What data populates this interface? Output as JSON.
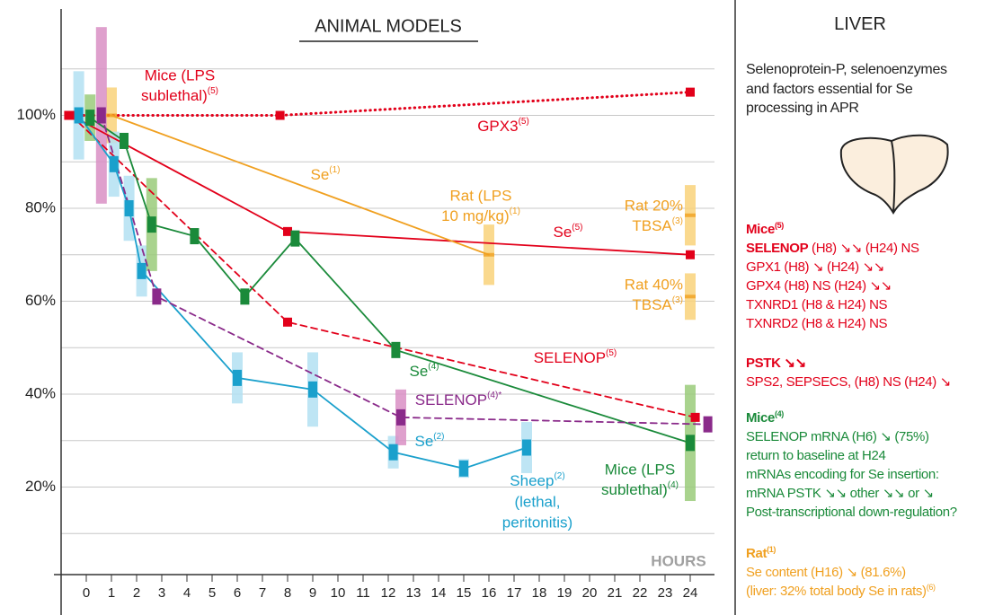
{
  "chart_data": {
    "type": "line",
    "title": "ANIMAL MODELS",
    "ylim": [
      0,
      120
    ],
    "xlim": [
      -1,
      25
    ],
    "yticks": [
      {
        "value": 20,
        "label": "20%"
      },
      {
        "value": 40,
        "label": "40%"
      },
      {
        "value": 60,
        "label": "60%"
      },
      {
        "value": 80,
        "label": "80%"
      },
      {
        "value": 100,
        "label": "100%"
      }
    ],
    "ygrid": [
      10,
      20,
      30,
      40,
      50,
      60,
      70,
      80,
      90,
      100,
      110
    ],
    "xticks": [
      0,
      1,
      2,
      3,
      4,
      5,
      6,
      7,
      8,
      9,
      10,
      11,
      12,
      13,
      14,
      15,
      16,
      17,
      18,
      19,
      20,
      21,
      22,
      23,
      24
    ],
    "grid": true,
    "series": [
      {
        "x": [
          -0.7,
          7.7,
          24
        ],
        "values": [
          100,
          100,
          105
        ],
        "color": "#e2001a",
        "style": "dotted",
        "marker": "square"
      },
      {
        "x": [
          -0.6,
          8,
          24
        ],
        "values": [
          100,
          75,
          70
        ],
        "color": "#e2001a",
        "style": "solid",
        "marker": "square"
      },
      {
        "x": [
          -0.6,
          8,
          24.2
        ],
        "values": [
          100,
          55.5,
          35
        ],
        "color": "#e2001a",
        "style": "dashed",
        "marker": "square"
      },
      {
        "x": [
          1,
          16
        ],
        "values": [
          100,
          70
        ],
        "errors": [
          6,
          6.5
        ],
        "color": "#f0a020",
        "light_color": "#f9d27a",
        "style": "solid",
        "marker": "tick"
      },
      {
        "x": [
          24
        ],
        "values": [
          78.5
        ],
        "errors": [
          6.5
        ],
        "color": "#f0a020",
        "light_color": "#f9d27a",
        "style": "none",
        "marker": "tick"
      },
      {
        "x": [
          24
        ],
        "values": [
          61
        ],
        "errors": [
          5
        ],
        "color": "#f0a020",
        "light_color": "#f9d27a",
        "style": "none",
        "marker": "tick"
      },
      {
        "x": [
          -0.3,
          1.1,
          1.7,
          2.2,
          6,
          9,
          12.2,
          15,
          17.5
        ],
        "values": [
          100,
          89.5,
          80,
          66.5,
          43.5,
          41,
          27.5,
          24,
          28.5
        ],
        "errors": [
          9.5,
          7,
          7,
          5.5,
          5.5,
          8,
          3.5,
          2,
          5.5
        ],
        "color": "#1aa0cc",
        "light_color": "#b3e0f2",
        "style": "solid",
        "marker": "bar"
      },
      {
        "x": [
          0.15,
          1.5,
          2.6,
          4.3,
          6.3,
          8.3,
          12.3,
          24
        ],
        "values": [
          99.5,
          94.5,
          76.5,
          74,
          61,
          73.5,
          49.5,
          29.5
        ],
        "errors": [
          5,
          null,
          10,
          null,
          null,
          null,
          null,
          12.5
        ],
        "color": "#1a8a3a",
        "light_color": "#9acb7a",
        "style": "solid",
        "marker": "bar"
      },
      {
        "x": [
          0.6,
          2.8,
          12.5,
          24.7
        ],
        "values": [
          100,
          61,
          35,
          33.5
        ],
        "errors": [
          19,
          null,
          6,
          null
        ],
        "color": "#8a2a8a",
        "light_color": "#d98fc4",
        "style": "dashed",
        "marker": "bar"
      }
    ],
    "annotations": [
      {
        "lines": [
          "Mice (LPS",
          {
            "text": "sublethal)",
            "sup": "(5)"
          }
        ],
        "color": "#e2001a"
      },
      {
        "lines": [
          {
            "text": "GPX3",
            "sup": "(5)"
          }
        ],
        "color": "#e2001a"
      },
      {
        "lines": [
          {
            "text": "Se",
            "sup": "(1)"
          }
        ],
        "color": "#f0a020"
      },
      {
        "lines": [
          "Rat (LPS",
          {
            "text": "10 mg/kg)",
            "sup": "(1)"
          }
        ],
        "color": "#f0a020"
      },
      {
        "lines": [
          "Rat 20%",
          {
            "text": "TBSA",
            "sup": "(3)"
          }
        ],
        "color": "#f0a020"
      },
      {
        "lines": [
          {
            "text": "Se",
            "sup": "(5)"
          }
        ],
        "color": "#e2001a"
      },
      {
        "lines": [
          "Rat 40%",
          {
            "text": "TBSA",
            "sup": "(3)"
          }
        ],
        "color": "#f0a020"
      },
      {
        "lines": [
          {
            "text": "SELENOP",
            "sup": "(5)"
          }
        ],
        "color": "#e2001a"
      },
      {
        "lines": [
          {
            "text": "Se",
            "sup": "(4)"
          }
        ],
        "color": "#1a8a3a"
      },
      {
        "lines": [
          {
            "text": "SELENOP",
            "sup": "(4)*"
          }
        ],
        "color": "#8a2a8a"
      },
      {
        "lines": [
          {
            "text": "Se",
            "sup": "(2)"
          }
        ],
        "color": "#1aa0cc"
      },
      {
        "lines": [
          {
            "text": "Sheep",
            "sup": "(2)"
          },
          "(lethal,",
          "peritonitis)"
        ],
        "color": "#1aa0cc"
      },
      {
        "lines": [
          "Mice (LPS",
          {
            "text": "sublethal)",
            "sup": "(4)"
          }
        ],
        "color": "#1a8a3a"
      },
      {
        "lines": [
          "HOURS"
        ],
        "color": "#a0a0a0"
      }
    ]
  },
  "liver_panel": {
    "title": "LIVER",
    "intro": [
      "Selenoprotein-P, selenoenzymes",
      "and factors essential for Se",
      "processing in APR"
    ],
    "sections": [
      {
        "heading": {
          "text": "Mice",
          "sup": "(5)"
        },
        "color": "#e2001a",
        "lines": [
          {
            "bold": "SELENOP",
            "text": " (H8) ↘↘ (H24) NS"
          },
          "GPX1 (H8) ↘ (H24) ↘↘",
          "GPX4 (H8) NS (H24) ↘↘",
          "TXNRD1 (H8 & H24) NS",
          "TXNRD2 (H8 & H24) NS"
        ]
      },
      {
        "heading": {
          "text": "PSTK ↘↘"
        },
        "color": "#e2001a",
        "lines": [
          "SPS2, SEPSECS, (H8) NS (H24) ↘"
        ]
      },
      {
        "heading": {
          "text": "Mice",
          "sup": "(4)"
        },
        "color": "#1a8a3a",
        "lines": [
          "SELENOP mRNA (H6) ↘ (75%)",
          "return to baseline at H24",
          "mRNAs encoding for Se insertion:",
          "mRNA PSTK ↘↘ other ↘↘ or ↘",
          "Post-transcriptional down-regulation?"
        ]
      },
      {
        "heading": {
          "text": "Rat",
          "sup": "(1)"
        },
        "color": "#f0a020",
        "lines": [
          "Se content (H16) ↘ (81.6%)",
          {
            "text": "(liver: 32% total body Se in rats)",
            "sup": "(6)"
          }
        ]
      }
    ]
  }
}
